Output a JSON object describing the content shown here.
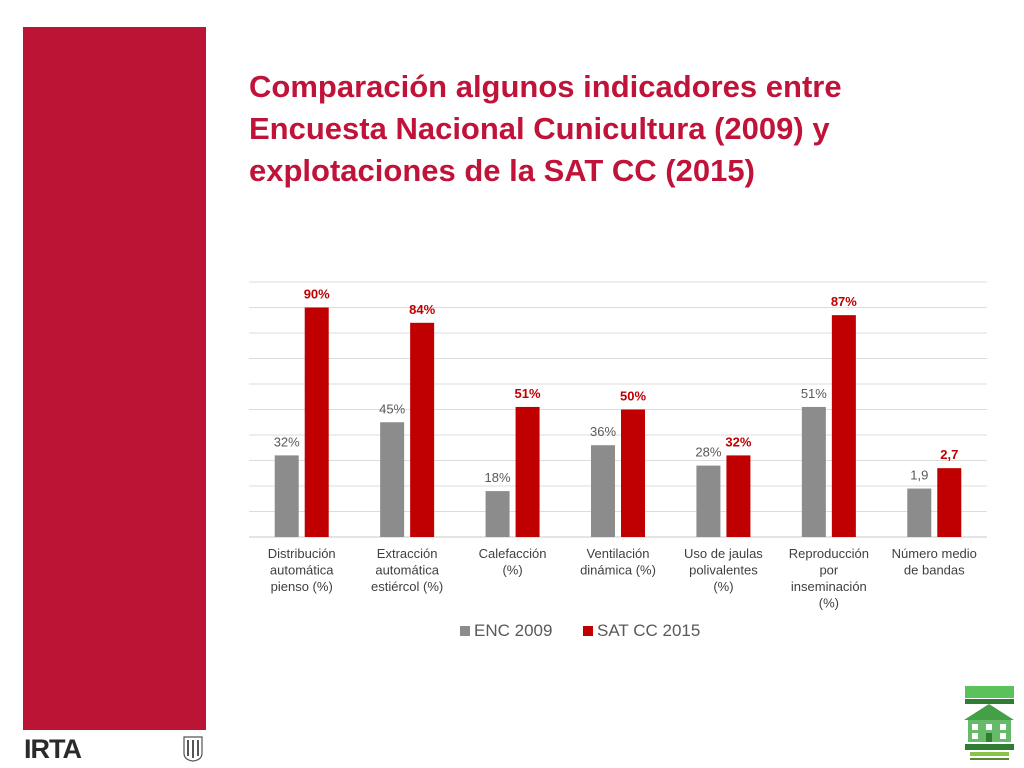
{
  "slide": {
    "title_lines": [
      "Comparación algunos indicadores entre",
      "Encuesta Nacional Cunicultura (2009) y",
      "explotaciones de la SAT CC (2015)"
    ],
    "logo_text": "IRTA",
    "accent_color": "#bc1434",
    "title_color": "#c0133a"
  },
  "chart_data": {
    "type": "bar",
    "categories": [
      [
        "Distribución",
        "automática",
        "pienso (%)"
      ],
      [
        "Extracción",
        "automática",
        "estiércol (%)"
      ],
      [
        "Calefacción",
        "(%)"
      ],
      [
        "Ventilación",
        "dinámica (%)"
      ],
      [
        "Uso de jaulas",
        "polivalentes",
        "(%)"
      ],
      [
        "Reproducción",
        "por",
        "inseminación",
        "(%)"
      ],
      [
        "Número medio",
        "de bandas"
      ]
    ],
    "series": [
      {
        "name": "ENC 2009",
        "color": "#8c8c8c",
        "label_color": "#595959",
        "values": [
          32,
          45,
          18,
          36,
          28,
          51,
          1.9
        ],
        "labels": [
          "32%",
          "45%",
          "18%",
          "36%",
          "28%",
          "51%",
          "1,9"
        ]
      },
      {
        "name": "SAT CC 2015",
        "color": "#c00000",
        "label_color": "#c00000",
        "values": [
          90,
          84,
          51,
          50,
          32,
          87,
          2.7
        ],
        "labels": [
          "90%",
          "84%",
          "51%",
          "50%",
          "32%",
          "87%",
          "2,7"
        ]
      }
    ],
    "last_category_scale": {
      "value": 2.7,
      "equivalent": 27
    },
    "ylim": [
      0,
      100
    ],
    "gridlines": true,
    "legend": "bottom"
  }
}
